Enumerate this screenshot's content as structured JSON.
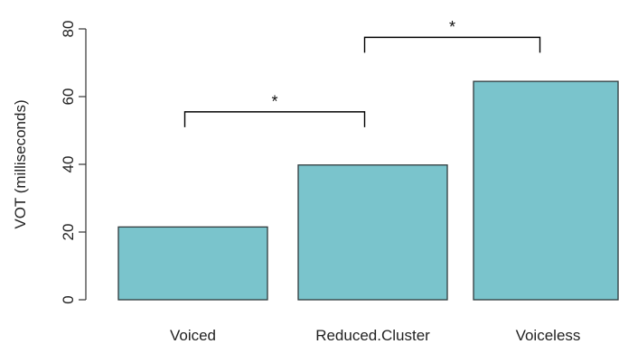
{
  "chart_data": {
    "type": "bar",
    "categories": [
      "Voiced",
      "Reduced.Cluster",
      "Voiceless"
    ],
    "values": [
      21.5,
      39.8,
      64.5
    ],
    "ylabel": "VOT (milliseconds)",
    "xlabel": "",
    "title": "",
    "ylim": [
      0,
      80
    ],
    "yticks": [
      "0",
      "20",
      "40",
      "60",
      "80"
    ],
    "bar_color": "#7ac4cc",
    "grid": false,
    "annotations": [
      {
        "from": "Voiced",
        "to": "Reduced.Cluster",
        "level": 55.5,
        "label": "*"
      },
      {
        "from": "Reduced.Cluster",
        "to": "Voiceless",
        "level": 77.5,
        "label": "*"
      }
    ]
  }
}
